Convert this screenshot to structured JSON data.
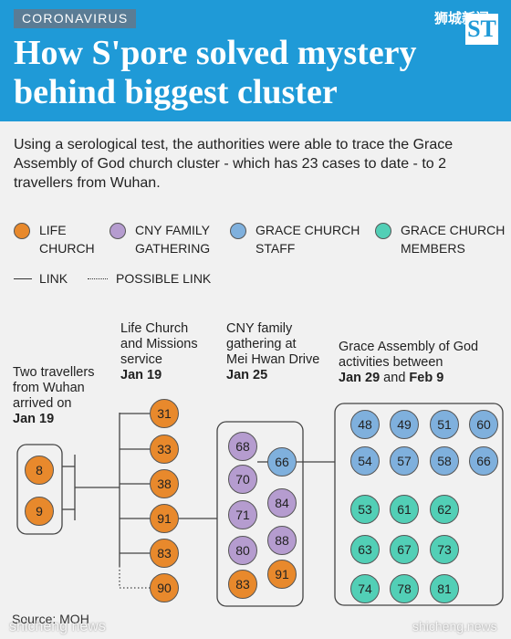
{
  "header": {
    "tag": "CORONAVIRUS",
    "title": "How S'pore solved mystery behind biggest cluster",
    "brand_cn": "狮城新闻",
    "logo": "ST"
  },
  "intro": "Using a serological test, the authorities were able to trace the Grace Assembly of God church cluster - which has 23 cases to date - to 2 travellers from Wuhan.",
  "legend": {
    "life_church": {
      "line1": "LIFE",
      "line2": "CHURCH",
      "color": "#e8892c"
    },
    "cny_family": {
      "line1": "CNY FAMILY",
      "line2": "GATHERING",
      "color": "#b59ccf"
    },
    "grace_staff": {
      "line1": "GRACE CHURCH",
      "line2": "STAFF",
      "color": "#7fb0dd"
    },
    "grace_members": {
      "line1": "GRACE CHURCH",
      "line2": "MEMBERS",
      "color": "#52cfb6"
    },
    "link": "LINK",
    "possible_link": "POSSIBLE LINK"
  },
  "stages": {
    "travellers": {
      "l1": "Two travellers",
      "l2": "from Wuhan",
      "l3": "arrived on",
      "date": "Jan 19"
    },
    "life_church": {
      "l1": "Life Church",
      "l2": "and Missions",
      "l3": "service",
      "date": "Jan 19"
    },
    "cny": {
      "l1": "CNY family",
      "l2": "gathering at",
      "l3": "Mei Hwan Drive",
      "date": "Jan 25"
    },
    "grace": {
      "l1": "Grace Assembly of God",
      "l2": "activities between",
      "date_a": "Jan 29",
      "and": " and ",
      "date_b": "Feb 9"
    }
  },
  "cases": {
    "travellers": [
      "8",
      "9"
    ],
    "life_church": [
      "31",
      "33",
      "38",
      "91",
      "83",
      "90"
    ],
    "cny_purple": [
      "68",
      "70",
      "71",
      "80"
    ],
    "cny_purple_right": [
      "84",
      "88"
    ],
    "cny_orange": [
      "83",
      "91"
    ],
    "grace_staff_link": "66",
    "grace_staff": [
      "48",
      "49",
      "51",
      "60",
      "54",
      "57",
      "58",
      "66"
    ],
    "grace_members": [
      "53",
      "61",
      "62",
      "63",
      "67",
      "73",
      "74",
      "78",
      "81"
    ]
  },
  "source": "Source: MOH",
  "watermarks": [
    "shicheng news",
    "shicheng.news"
  ]
}
